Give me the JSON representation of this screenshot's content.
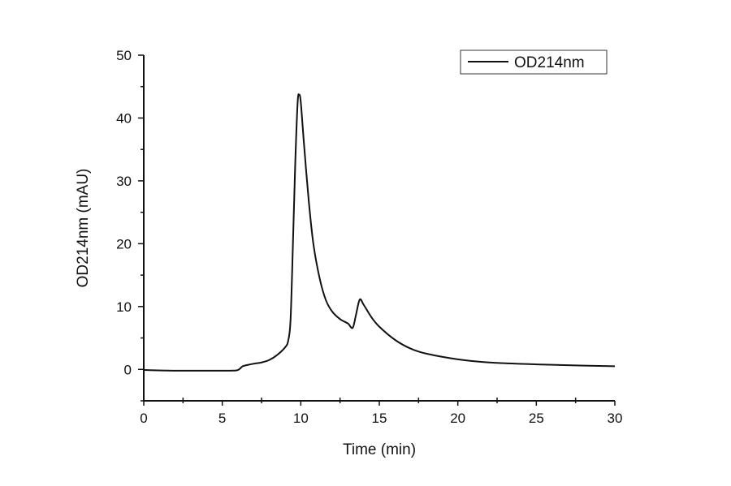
{
  "chart_data": {
    "type": "line",
    "title": "",
    "xlabel": "Time (min)",
    "ylabel": "OD214nm (mAU)",
    "xlim": [
      0,
      30
    ],
    "ylim": [
      -5,
      50
    ],
    "xticks": [
      0,
      5,
      10,
      15,
      20,
      25,
      30
    ],
    "yticks": [
      0,
      10,
      20,
      30,
      40,
      50
    ],
    "grid": false,
    "legend_position": "top-right",
    "line_color": "#111111",
    "series": [
      {
        "name": "OD214nm",
        "x": [
          0,
          2,
          4,
          5.5,
          6.0,
          6.3,
          6.6,
          7,
          7.5,
          8,
          8.5,
          9.0,
          9.2,
          9.35,
          9.5,
          9.65,
          9.8,
          9.9,
          10.0,
          10.2,
          10.5,
          10.8,
          11.2,
          11.6,
          12,
          12.5,
          13,
          13.3,
          13.5,
          13.75,
          14,
          14.5,
          15,
          16,
          17,
          18,
          20,
          22,
          25,
          28,
          30
        ],
        "y": [
          -0.1,
          -0.2,
          -0.2,
          -0.2,
          -0.1,
          0.5,
          0.7,
          0.9,
          1.1,
          1.5,
          2.3,
          3.5,
          4.6,
          8,
          20,
          33,
          42.5,
          43.7,
          42.5,
          36,
          27,
          20,
          14.5,
          11,
          9.2,
          8,
          7.3,
          6.6,
          8.5,
          11.1,
          10.3,
          8.3,
          6.8,
          4.7,
          3.3,
          2.5,
          1.6,
          1.1,
          0.8,
          0.6,
          0.5
        ]
      }
    ]
  }
}
